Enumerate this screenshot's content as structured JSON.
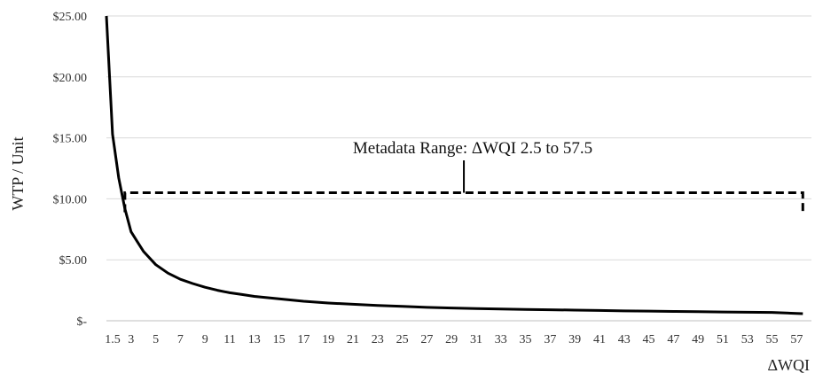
{
  "chart_data": {
    "type": "line",
    "title": "",
    "xlabel": "ΔWQI",
    "ylabel": "WTP / Unit",
    "ylim": [
      0,
      25
    ],
    "grid": true,
    "legend": "none",
    "line_color": "#000000",
    "y_ticks": [
      {
        "value": 25,
        "label": "$25.00"
      },
      {
        "value": 20,
        "label": "$20.00"
      },
      {
        "value": 15,
        "label": "$15.00"
      },
      {
        "value": 10,
        "label": "$10.00"
      },
      {
        "value": 5,
        "label": "$5.00"
      },
      {
        "value": 0,
        "label": "$-"
      }
    ],
    "categories": [
      "1.5",
      "3",
      "5",
      "7",
      "9",
      "11",
      "13",
      "15",
      "17",
      "19",
      "21",
      "23",
      "25",
      "27",
      "29",
      "31",
      "33",
      "35",
      "37",
      "39",
      "41",
      "43",
      "45",
      "47",
      "49",
      "51",
      "53",
      "55",
      "57"
    ],
    "series": [
      {
        "x": [
          1,
          1.5,
          2,
          2.5,
          3,
          3.5,
          4,
          5,
          6,
          7,
          8,
          9,
          10,
          11,
          12,
          13,
          15,
          17,
          19,
          21,
          23,
          25,
          27,
          29,
          31,
          33,
          35,
          37,
          39,
          41,
          43,
          45,
          47,
          49,
          51,
          53,
          55,
          57,
          57.5
        ],
        "y": [
          25.0,
          15.3,
          11.7,
          9.2,
          7.3,
          6.5,
          5.7,
          4.6,
          3.9,
          3.4,
          3.05,
          2.75,
          2.5,
          2.3,
          2.15,
          2.0,
          1.8,
          1.6,
          1.45,
          1.35,
          1.25,
          1.18,
          1.1,
          1.05,
          1.0,
          0.96,
          0.92,
          0.9,
          0.87,
          0.84,
          0.81,
          0.79,
          0.76,
          0.74,
          0.72,
          0.7,
          0.68,
          0.6,
          0.58
        ]
      }
    ],
    "annotation": {
      "text": "Metadata Range: ΔWQI 2.5 to 57.5",
      "range": [
        2.5,
        57.5
      ],
      "bracket_y": 10.5
    }
  }
}
